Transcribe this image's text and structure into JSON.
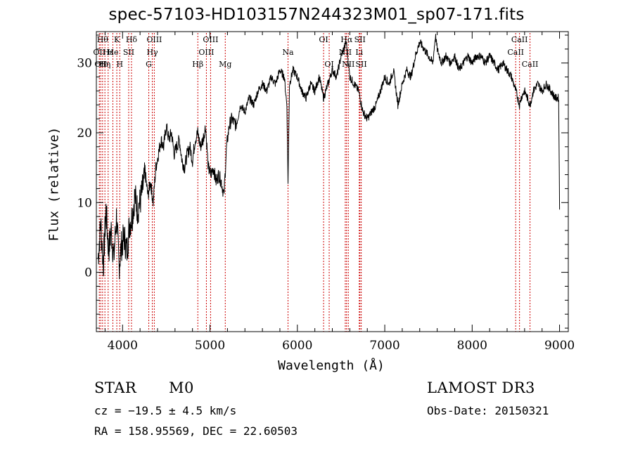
{
  "chart_data": {
    "type": "line",
    "title": "spec-57103-HD103157N244323M01_sp07-171.fits",
    "xlabel": "Wavelength (Å)",
    "ylabel": "Flux (relative)",
    "xlim": [
      3700,
      9100
    ],
    "ylim": [
      -8.5,
      34.5
    ],
    "x_ticks": [
      4000,
      5000,
      6000,
      7000,
      8000,
      9000
    ],
    "y_ticks": [
      0,
      10,
      20,
      30
    ],
    "grid": false,
    "series": [
      {
        "x": [
          3720,
          3750,
          3780,
          3810,
          3840,
          3870,
          3900,
          3930,
          3960,
          3990,
          4020,
          4050,
          4080,
          4110,
          4140,
          4170,
          4200,
          4230,
          4260,
          4290,
          4320,
          4350,
          4380,
          4410,
          4440,
          4470,
          4500,
          4530,
          4560,
          4590,
          4620,
          4650,
          4680,
          4710,
          4740,
          4770,
          4800,
          4830,
          4860,
          4890,
          4920,
          4950,
          4980,
          5010,
          5040,
          5070,
          5100,
          5130,
          5160,
          5190,
          5220,
          5250,
          5300,
          5350,
          5400,
          5450,
          5500,
          5550,
          5600,
          5650,
          5700,
          5750,
          5800,
          5850,
          5880,
          5893,
          5910,
          5950,
          6000,
          6050,
          6100,
          6150,
          6200,
          6250,
          6300,
          6350,
          6400,
          6450,
          6500,
          6560,
          6600,
          6650,
          6700,
          6750,
          6800,
          6850,
          6900,
          6950,
          7000,
          7050,
          7100,
          7150,
          7200,
          7250,
          7300,
          7350,
          7400,
          7450,
          7500,
          7550,
          7580,
          7600,
          7650,
          7700,
          7750,
          7800,
          7850,
          7900,
          7950,
          8000,
          8050,
          8100,
          8150,
          8200,
          8250,
          8300,
          8350,
          8400,
          8450,
          8500,
          8542,
          8560,
          8600,
          8662,
          8700,
          8750,
          8800,
          8850,
          8900,
          8950,
          8990,
          9000
        ],
        "y": [
          2,
          7,
          1,
          9,
          3,
          6,
          2,
          8,
          1,
          4,
          5,
          3,
          7,
          8,
          11,
          9,
          10,
          12,
          14,
          11,
          13,
          10,
          15,
          17,
          19,
          18,
          21,
          19,
          20,
          17,
          18,
          19,
          16,
          15,
          17,
          18,
          16,
          19,
          20,
          18,
          19,
          21,
          15,
          14,
          15,
          13,
          14,
          13,
          11,
          18,
          21,
          22,
          21,
          24,
          23,
          25,
          24,
          26,
          27,
          26,
          28,
          27,
          29,
          28,
          24,
          13,
          27,
          29,
          28,
          26,
          25,
          27,
          26,
          28,
          25,
          27,
          29,
          28,
          31,
          33,
          28,
          27,
          26,
          23,
          22,
          23,
          24,
          26,
          28,
          27,
          29,
          24,
          27,
          29,
          28,
          31,
          33,
          32,
          31,
          30,
          34,
          32,
          30,
          31,
          30,
          31,
          29,
          30,
          31,
          30,
          31,
          31,
          30,
          31,
          30,
          29,
          30,
          29,
          28,
          26,
          24,
          25,
          26,
          24,
          26,
          27,
          26,
          27,
          26,
          25,
          25,
          9
        ]
      }
    ],
    "line_markers": [
      {
        "x": 3734,
        "label": "OII",
        "row": 1
      },
      {
        "x": 3750,
        "label": "OII",
        "row": 2
      },
      {
        "x": 3771,
        "label": "Hθ",
        "row": 0
      },
      {
        "x": 3798,
        "label": "Hη",
        "row": 2
      },
      {
        "x": 3835,
        "label": "Hε",
        "row": 1
      },
      {
        "x": 3889,
        "label": "He",
        "row": 1
      },
      {
        "x": 3934,
        "label": "K",
        "row": 0
      },
      {
        "x": 3968,
        "label": "H",
        "row": 2
      },
      {
        "x": 4070,
        "label": "SII",
        "row": 1
      },
      {
        "x": 4102,
        "label": "Hδ",
        "row": 0
      },
      {
        "x": 4300,
        "label": "G",
        "row": 2
      },
      {
        "x": 4340,
        "label": "Hγ",
        "row": 1
      },
      {
        "x": 4363,
        "label": "OIII",
        "row": 0
      },
      {
        "x": 4861,
        "label": "Hβ",
        "row": 2
      },
      {
        "x": 4959,
        "label": "OIII",
        "row": 1
      },
      {
        "x": 5007,
        "label": "OIII",
        "row": 0
      },
      {
        "x": 5175,
        "label": "Mg",
        "row": 2
      },
      {
        "x": 5893,
        "label": "Na",
        "row": 1
      },
      {
        "x": 6300,
        "label": "OI",
        "row": 0
      },
      {
        "x": 6364,
        "label": "OI",
        "row": 2
      },
      {
        "x": 6548,
        "label": "NII",
        "row": 1
      },
      {
        "x": 6563,
        "label": "Hα",
        "row": 0
      },
      {
        "x": 6583,
        "label": "NII",
        "row": 2
      },
      {
        "x": 6708,
        "label": "Li",
        "row": 1
      },
      {
        "x": 6716,
        "label": "SII",
        "row": 0
      },
      {
        "x": 6731,
        "label": "SII",
        "row": 2
      },
      {
        "x": 8498,
        "label": "CaII",
        "row": 1
      },
      {
        "x": 8542,
        "label": "CaII",
        "row": 0
      },
      {
        "x": 8662,
        "label": "CaII",
        "row": 2
      }
    ]
  },
  "info": {
    "object_class": "STAR",
    "subclass": "M0",
    "survey": "LAMOST DR3",
    "cz": "cz = −19.5 ± 4.5 km/s",
    "obs_date": "Obs-Date: 20150321",
    "coords": "RA = 158.95569, DEC =  22.60503"
  },
  "colors": {
    "spectrum": "#000000",
    "marker_lines": "#cc0000",
    "axes": "#000000"
  }
}
